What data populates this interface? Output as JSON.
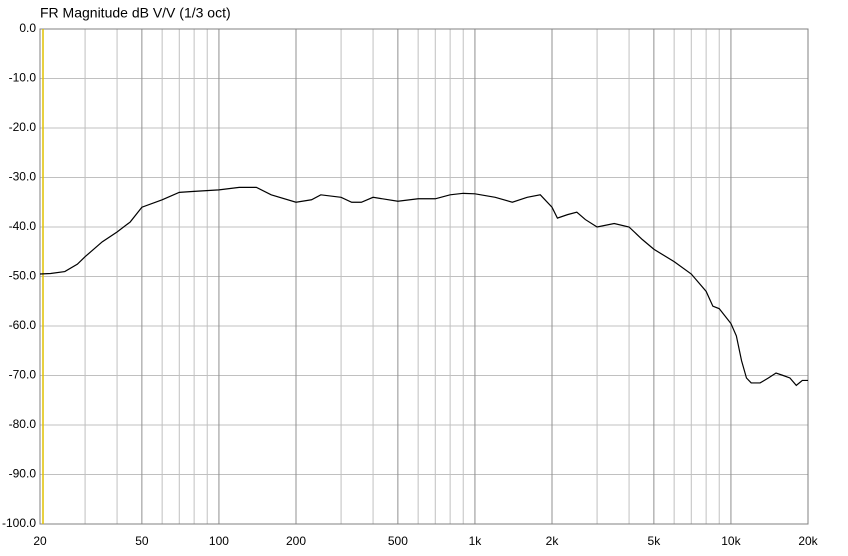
{
  "chart_data": {
    "type": "line",
    "title": "FR Magnitude dB V/V (1/3 oct)",
    "x": [
      20,
      22,
      25,
      28,
      30,
      35,
      40,
      45,
      50,
      60,
      70,
      80,
      100,
      120,
      140,
      160,
      200,
      230,
      250,
      300,
      330,
      360,
      400,
      500,
      600,
      700,
      800,
      900,
      1000,
      1200,
      1400,
      1600,
      1800,
      2000,
      2100,
      2300,
      2500,
      2700,
      3000,
      3500,
      4000,
      4500,
      5000,
      6000,
      7000,
      8000,
      8500,
      9000,
      10000,
      10500,
      11000,
      11500,
      12000,
      13000,
      14000,
      15000,
      16000,
      17000,
      18000,
      19000,
      20000
    ],
    "values": [
      -49.5,
      -49.4,
      -49,
      -47.5,
      -46,
      -43,
      -41,
      -39,
      -36,
      -34.5,
      -33,
      -32.8,
      -32.5,
      -32,
      -32,
      -33.5,
      -35,
      -34.5,
      -33.5,
      -34,
      -35,
      -35,
      -34,
      -34.8,
      -34.3,
      -34.3,
      -33.5,
      -33.2,
      -33.3,
      -34,
      -35,
      -34,
      -33.5,
      -36,
      -38.2,
      -37.5,
      -37,
      -38.5,
      -40,
      -39.3,
      -40,
      -42.5,
      -44.5,
      -47,
      -49.5,
      -53,
      -56,
      -56.5,
      -59.5,
      -62,
      -67,
      -70.5,
      -71.5,
      -71.5,
      -70.5,
      -69.5,
      -70,
      -70.5,
      -72,
      -71,
      -71
    ],
    "color": "#000000",
    "xlog": true,
    "xlim": [
      20,
      20000
    ],
    "xticks": [
      20,
      50,
      100,
      200,
      500,
      {
        "value": 1000,
        "label": "1k"
      },
      {
        "value": 2000,
        "label": "2k"
      },
      {
        "value": 5000,
        "label": "5k"
      },
      {
        "value": 10000,
        "label": "10k"
      },
      {
        "value": 20000,
        "label": "20k"
      }
    ],
    "xminorticks": [
      30,
      40,
      60,
      70,
      80,
      90,
      300,
      400,
      600,
      700,
      800,
      900,
      3000,
      4000,
      6000,
      7000,
      8000,
      9000
    ],
    "ylim": [
      -100,
      0
    ],
    "yticks": [
      {
        "value": 0,
        "label": "0.0"
      },
      {
        "value": -10,
        "label": "-10.0"
      },
      {
        "value": -20,
        "label": "-20.0"
      },
      {
        "value": -30,
        "label": "-30.0"
      },
      {
        "value": -40,
        "label": "-40.0"
      },
      {
        "value": -50,
        "label": "-50.0"
      },
      {
        "value": -60,
        "label": "-60.0"
      },
      {
        "value": -70,
        "label": "-70.0"
      },
      {
        "value": -80,
        "label": "-80.0"
      },
      {
        "value": -90,
        "label": "-90.0"
      },
      {
        "value": -100,
        "label": "-100.0"
      }
    ],
    "grid": true
  }
}
